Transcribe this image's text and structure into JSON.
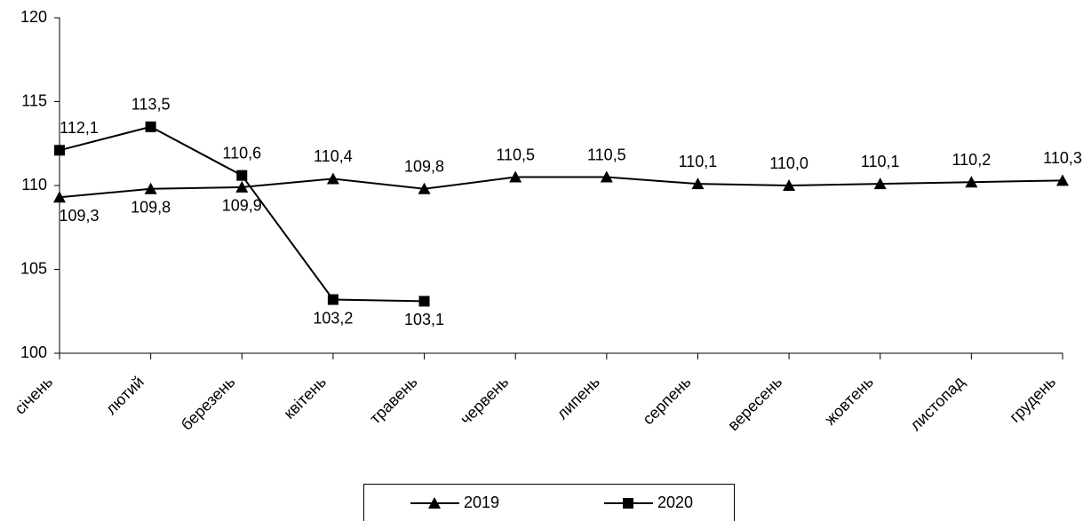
{
  "chart_data": {
    "type": "line",
    "categories": [
      "січень",
      "лютий",
      "березень",
      "квітень",
      "травень",
      "червень",
      "липень",
      "серпень",
      "вересень",
      "жовтень",
      "листопад",
      "грудень"
    ],
    "series": [
      {
        "name": "2019",
        "color": "#000000",
        "marker": "triangle",
        "values": [
          109.3,
          109.8,
          109.9,
          110.4,
          109.8,
          110.5,
          110.5,
          110.1,
          110.0,
          110.1,
          110.2,
          110.3
        ],
        "value_labels": [
          "109,3",
          "109,8",
          "109,9",
          "110,4",
          "109,8",
          "110,5",
          "110,5",
          "110,1",
          "110,0",
          "110,1",
          "110,2",
          "110,3"
        ]
      },
      {
        "name": "2020",
        "color": "#000000",
        "marker": "square",
        "values": [
          112.1,
          113.5,
          110.6,
          103.2,
          103.1,
          null,
          null,
          null,
          null,
          null,
          null,
          null
        ],
        "value_labels": [
          "112,1",
          "113,5",
          "110,6",
          "103,2",
          "103,1",
          null,
          null,
          null,
          null,
          null,
          null,
          null
        ]
      }
    ],
    "ylim": [
      100,
      120
    ],
    "yticks": [
      100,
      105,
      110,
      115,
      120
    ],
    "grid": false,
    "legend": "bottom"
  }
}
